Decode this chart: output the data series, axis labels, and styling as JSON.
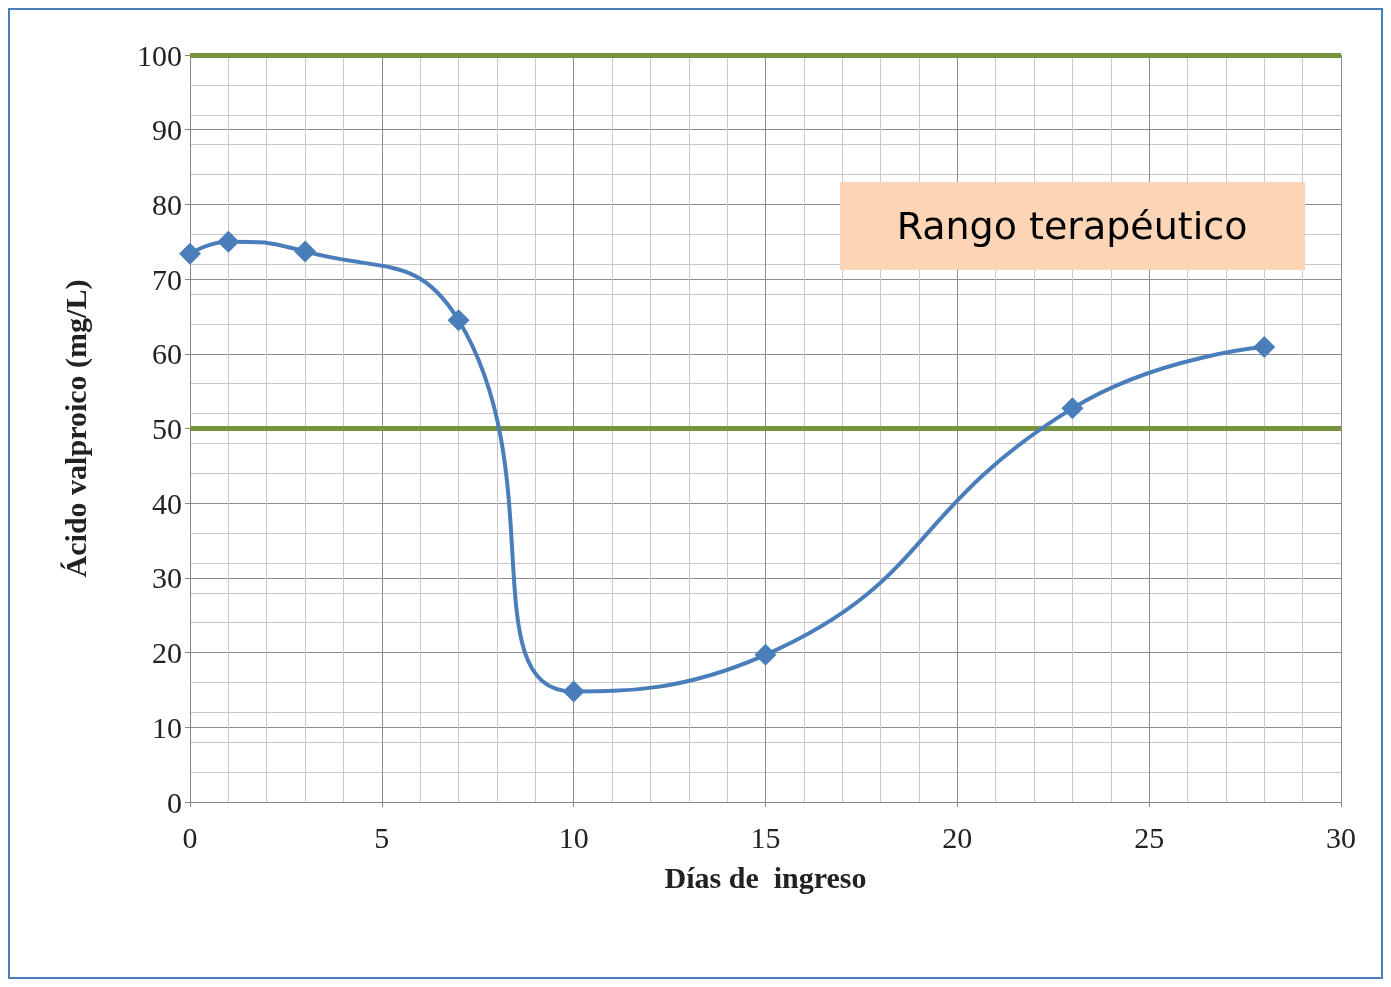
{
  "chart_data": {
    "type": "line",
    "xlabel": "Días de  ingreso",
    "ylabel": "Ácido valproico (mg/L)",
    "x": [
      0,
      1,
      3,
      7,
      10,
      15,
      23,
      28
    ],
    "series": [
      {
        "color": "#4a7ebb",
        "values": [
          73.4,
          75.0,
          73.7,
          64.5,
          14.8,
          19.7,
          52.7,
          60.9
        ]
      }
    ],
    "xlim": [
      0,
      30
    ],
    "xticks": [
      0,
      5,
      10,
      15,
      20,
      25,
      30
    ],
    "ylim": [
      0,
      100
    ],
    "yticks": [
      0,
      10,
      20,
      30,
      40,
      50,
      60,
      70,
      80,
      90,
      100
    ],
    "ref_lines": [
      {
        "axis": "y",
        "value": 50,
        "color": "#77933c"
      },
      {
        "axis": "y",
        "value": 100,
        "color": "#77933c"
      }
    ],
    "annotations": [
      "Rango terapéutico"
    ],
    "grid": true,
    "marker": "diamond",
    "line_style": "solid"
  }
}
